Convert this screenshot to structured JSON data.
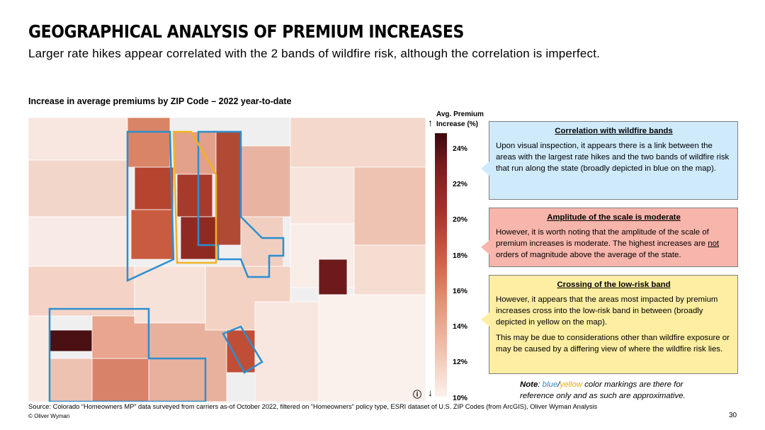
{
  "header": {
    "title": "GEOGRAPHICAL ANALYSIS OF PREMIUM INCREASES",
    "subtitle": "Larger rate hikes appear correlated with the 2 bands of wildfire risk, although the correlation is imperfect."
  },
  "map": {
    "title": "Increase in average premiums by ZIP Code – 2022 year-to-date",
    "info_icon": "info-icon"
  },
  "legend": {
    "title_line1": "Avg. Premium",
    "title_line2": "Increase (%)",
    "ticks": [
      "24%",
      "22%",
      "20%",
      "18%",
      "16%",
      "14%",
      "12%",
      "10%"
    ],
    "colors": {
      "high": "#3a0a0f",
      "mid": "#cf5f47",
      "low": "#fbf1ec"
    }
  },
  "callouts": [
    {
      "heading": "Correlation with wildfire bands",
      "body": "Upon visual inspection, it appears there is a link between the areas with the largest rate hikes and the two bands of wildfire risk that run along the state (broadly depicted in blue on the map).",
      "color": "#cfeafb"
    },
    {
      "heading": "Amplitude of the scale is moderate",
      "body_before": "However, it is worth noting that the amplitude of the scale of premium increases is moderate. The highest increases are ",
      "body_underlined": "not",
      "body_after": " orders of magnitude above the average of the state.",
      "color": "#f7b5ab"
    },
    {
      "heading": "Crossing of the low-risk band",
      "body": "However, it appears that the areas most impacted by premium increases cross into the low-risk band in between (broadly depicted in yellow on the map).",
      "body2": "This may be due to considerations other than wildfire exposure or may be caused by  a differing view of where the wildfire risk lies.",
      "color": "#fdeea2"
    }
  ],
  "note": {
    "label": "Note",
    "sep1": ": ",
    "blue": "blue",
    "slash": "/",
    "yellow": "yellow",
    "rest": " color markings are there for",
    "line2": "reference only and as such are approximative.",
    "colors": {
      "blue": "#2d8ecf",
      "yellow": "#e3ad0b"
    }
  },
  "footer": {
    "source": "Source: Colorado “Homeowners MP” data surveyed from carriers as-of October 2022, filtered on “Homeowners” policy type, ESRI dataset of U.S. ZIP Codes (from ArcGIS), Oliver Wyman Analysis",
    "copyright": "© Oliver Wyman",
    "page_number": "30"
  }
}
